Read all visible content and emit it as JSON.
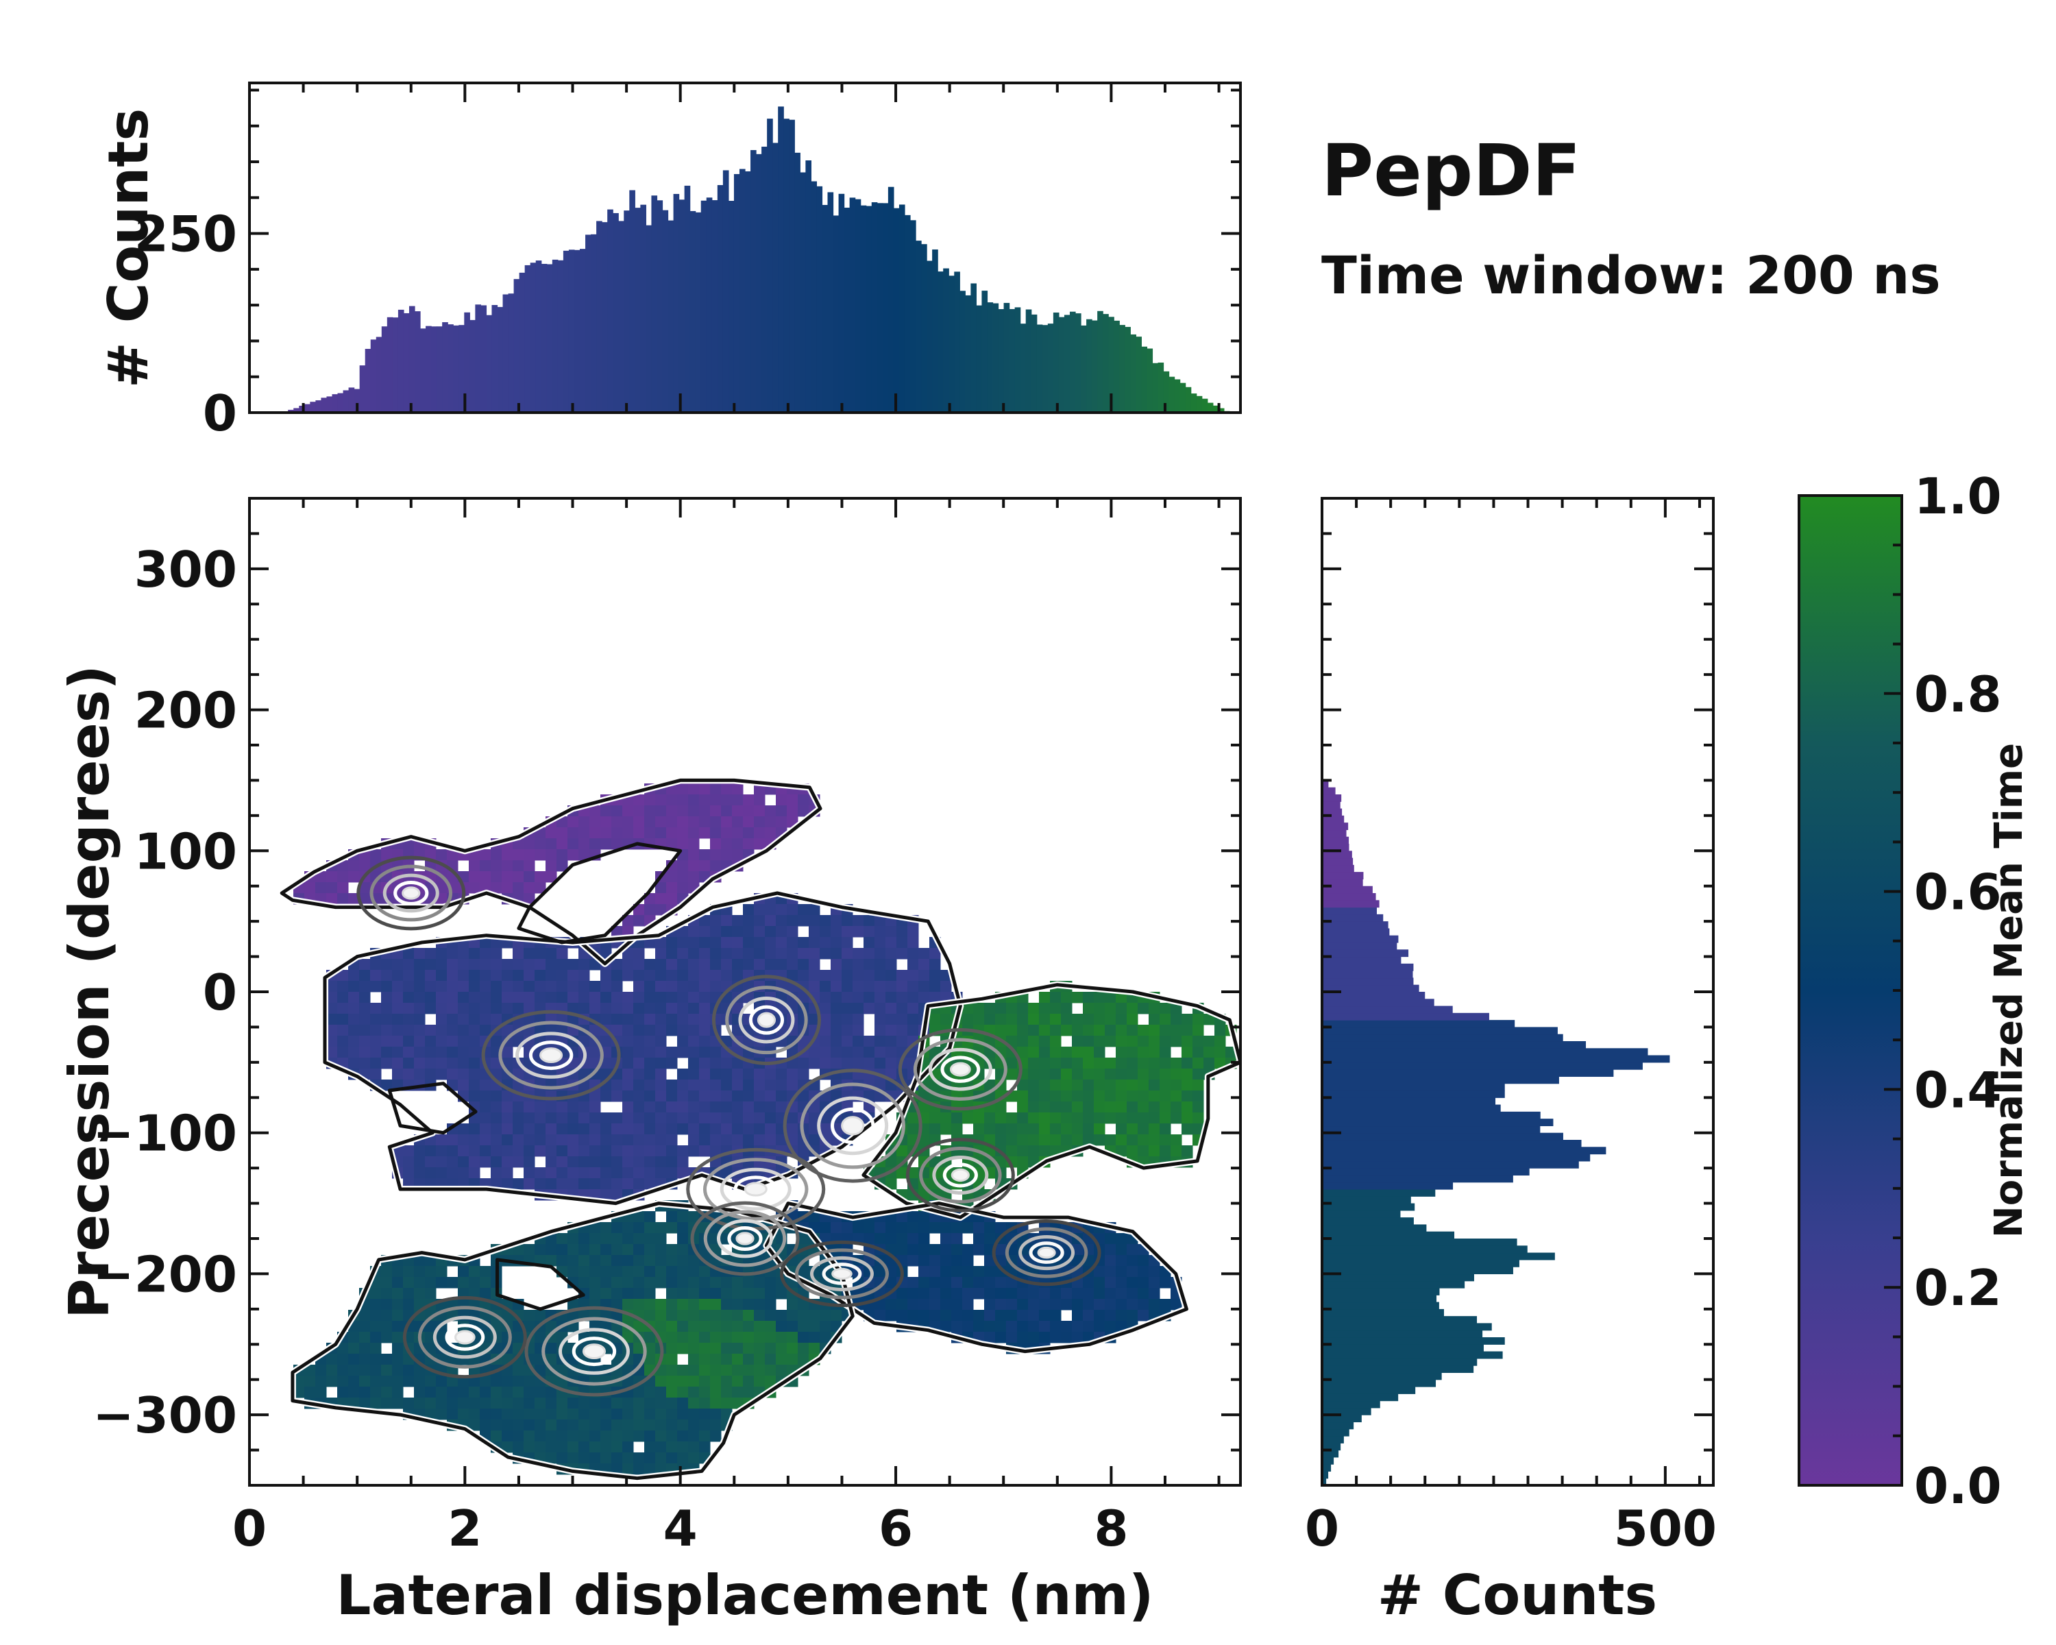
{
  "title": "PepDF",
  "subtitle": "Time window: 200 ns",
  "colors": {
    "purple": "#6a379c",
    "indigo": "#383f8f",
    "navy": "#063c6e",
    "teal": "#14595b",
    "green": "#228b22",
    "axis": "#111111"
  },
  "chart_data": [
    {
      "type": "heatmap",
      "name": "main-2d-distribution",
      "xlabel": "Lateral displacement (nm)",
      "ylabel": "Precession (degrees)",
      "xlim": [
        0,
        9.2
      ],
      "ylim": [
        -350,
        350
      ],
      "xticks": [
        0,
        2,
        4,
        6,
        8
      ],
      "xtick_labels": [
        "0",
        "2",
        "4",
        "6",
        "8"
      ],
      "yticks": [
        300,
        200,
        100,
        0,
        -100,
        -200,
        -300
      ],
      "ytick_labels": [
        "300",
        "200",
        "100",
        "0",
        "−100",
        "−200",
        "−300"
      ],
      "color_by": "Normalized Mean Time",
      "regions": [
        {
          "name": "upper-purple-lobe",
          "time": 0.05,
          "points": [
            [
              0.3,
              70
            ],
            [
              0.6,
              85
            ],
            [
              1.0,
              100
            ],
            [
              1.5,
              110
            ],
            [
              2.0,
              100
            ],
            [
              2.5,
              110
            ],
            [
              3.0,
              130
            ],
            [
              3.5,
              140
            ],
            [
              4.0,
              150
            ],
            [
              4.5,
              150
            ],
            [
              5.2,
              145
            ],
            [
              5.3,
              130
            ],
            [
              4.8,
              100
            ],
            [
              4.3,
              80
            ],
            [
              4.0,
              60
            ],
            [
              3.6,
              40
            ],
            [
              3.3,
              20
            ],
            [
              3.0,
              40
            ],
            [
              2.6,
              60
            ],
            [
              2.2,
              70
            ],
            [
              1.8,
              60
            ],
            [
              1.3,
              60
            ],
            [
              0.8,
              60
            ],
            [
              0.4,
              65
            ]
          ]
        },
        {
          "name": "central-indigo-lobe",
          "time": 0.3,
          "points": [
            [
              0.7,
              10
            ],
            [
              1.0,
              25
            ],
            [
              1.6,
              35
            ],
            [
              2.2,
              40
            ],
            [
              3.0,
              35
            ],
            [
              3.8,
              40
            ],
            [
              4.3,
              60
            ],
            [
              4.9,
              70
            ],
            [
              5.5,
              60
            ],
            [
              6.3,
              50
            ],
            [
              6.5,
              20
            ],
            [
              6.6,
              -10
            ],
            [
              6.5,
              -40
            ],
            [
              6.0,
              -80
            ],
            [
              5.5,
              -110
            ],
            [
              5.0,
              -130
            ],
            [
              4.6,
              -140
            ],
            [
              4.2,
              -130
            ],
            [
              3.8,
              -140
            ],
            [
              3.4,
              -150
            ],
            [
              2.8,
              -145
            ],
            [
              2.2,
              -140
            ],
            [
              1.4,
              -140
            ],
            [
              1.3,
              -110
            ],
            [
              1.7,
              -100
            ],
            [
              1.4,
              -80
            ],
            [
              1.0,
              -60
            ],
            [
              0.7,
              -50
            ],
            [
              0.7,
              -20
            ]
          ]
        },
        {
          "name": "right-green-lobe",
          "time": 0.9,
          "points": [
            [
              6.3,
              -10
            ],
            [
              6.8,
              -5
            ],
            [
              7.5,
              5
            ],
            [
              8.2,
              0
            ],
            [
              8.8,
              -10
            ],
            [
              9.1,
              -20
            ],
            [
              9.2,
              -50
            ],
            [
              8.9,
              -60
            ],
            [
              8.9,
              -90
            ],
            [
              8.8,
              -120
            ],
            [
              8.3,
              -125
            ],
            [
              7.8,
              -110
            ],
            [
              7.4,
              -120
            ],
            [
              7.0,
              -140
            ],
            [
              6.6,
              -160
            ],
            [
              6.1,
              -150
            ],
            [
              5.7,
              -130
            ],
            [
              6.0,
              -100
            ],
            [
              6.2,
              -60
            ]
          ]
        },
        {
          "name": "right-navy-lobe",
          "time": 0.48,
          "points": [
            [
              5.0,
              -150
            ],
            [
              5.6,
              -160
            ],
            [
              6.4,
              -150
            ],
            [
              7.0,
              -160
            ],
            [
              7.6,
              -160
            ],
            [
              8.2,
              -170
            ],
            [
              8.6,
              -200
            ],
            [
              8.7,
              -225
            ],
            [
              8.2,
              -240
            ],
            [
              7.8,
              -250
            ],
            [
              7.2,
              -255
            ],
            [
              6.8,
              -250
            ],
            [
              6.3,
              -240
            ],
            [
              5.8,
              -235
            ],
            [
              5.4,
              -215
            ],
            [
              5.0,
              -200
            ],
            [
              4.8,
              -180
            ]
          ]
        },
        {
          "name": "lower-teal-lobe",
          "time": 0.65,
          "points": [
            [
              1.2,
              -190
            ],
            [
              1.6,
              -185
            ],
            [
              2.0,
              -190
            ],
            [
              2.4,
              -180
            ],
            [
              2.8,
              -170
            ],
            [
              3.3,
              -160
            ],
            [
              3.8,
              -150
            ],
            [
              4.5,
              -155
            ],
            [
              5.2,
              -170
            ],
            [
              5.5,
              -200
            ],
            [
              5.6,
              -230
            ],
            [
              5.3,
              -260
            ],
            [
              4.9,
              -280
            ],
            [
              4.5,
              -300
            ],
            [
              4.4,
              -320
            ],
            [
              4.2,
              -340
            ],
            [
              3.6,
              -345
            ],
            [
              3.0,
              -340
            ],
            [
              2.4,
              -330
            ],
            [
              2.0,
              -310
            ],
            [
              1.4,
              -300
            ],
            [
              0.8,
              -295
            ],
            [
              0.4,
              -290
            ],
            [
              0.4,
              -270
            ],
            [
              0.8,
              -250
            ],
            [
              1.0,
              -225
            ]
          ]
        },
        {
          "name": "lower-green-patch",
          "time": 0.85,
          "points": [
            [
              3.5,
              -220
            ],
            [
              4.0,
              -215
            ],
            [
              4.5,
              -225
            ],
            [
              5.0,
              -240
            ],
            [
              5.3,
              -255
            ],
            [
              5.1,
              -275
            ],
            [
              4.7,
              -290
            ],
            [
              4.3,
              -300
            ],
            [
              4.0,
              -290
            ],
            [
              3.7,
              -270
            ],
            [
              3.5,
              -245
            ]
          ]
        }
      ],
      "holes": [
        {
          "points": [
            [
              2.6,
              60
            ],
            [
              3.0,
              90
            ],
            [
              3.6,
              105
            ],
            [
              4.0,
              100
            ],
            [
              3.7,
              70
            ],
            [
              3.3,
              40
            ],
            [
              2.9,
              35
            ],
            [
              2.5,
              45
            ]
          ]
        },
        {
          "points": [
            [
              1.3,
              -70
            ],
            [
              1.8,
              -65
            ],
            [
              2.1,
              -85
            ],
            [
              1.8,
              -100
            ],
            [
              1.4,
              -95
            ]
          ]
        },
        {
          "points": [
            [
              2.3,
              -190
            ],
            [
              2.8,
              -195
            ],
            [
              3.1,
              -215
            ],
            [
              2.7,
              -225
            ],
            [
              2.3,
              -215
            ]
          ]
        }
      ],
      "density_peaks": [
        {
          "x": 1.5,
          "y": 70,
          "w": 0.35,
          "h": 18,
          "level": 0.6
        },
        {
          "x": 2.8,
          "y": -45,
          "w": 0.45,
          "h": 22,
          "level": 0.8
        },
        {
          "x": 4.8,
          "y": -20,
          "w": 0.35,
          "h": 22,
          "level": 0.8
        },
        {
          "x": 5.6,
          "y": -95,
          "w": 0.45,
          "h": 28,
          "level": 0.9
        },
        {
          "x": 4.7,
          "y": -140,
          "w": 0.45,
          "h": 20,
          "level": 0.9
        },
        {
          "x": 4.6,
          "y": -175,
          "w": 0.35,
          "h": 18,
          "level": 0.95
        },
        {
          "x": 6.6,
          "y": -55,
          "w": 0.4,
          "h": 20,
          "level": 0.85
        },
        {
          "x": 3.2,
          "y": -255,
          "w": 0.45,
          "h": 22,
          "level": 0.9
        },
        {
          "x": 2.0,
          "y": -245,
          "w": 0.4,
          "h": 20,
          "level": 0.6
        },
        {
          "x": 6.6,
          "y": -130,
          "w": 0.35,
          "h": 18,
          "level": 0.6
        },
        {
          "x": 5.5,
          "y": -200,
          "w": 0.4,
          "h": 16,
          "level": 0.5
        },
        {
          "x": 7.4,
          "y": -185,
          "w": 0.35,
          "h": 16,
          "level": 0.5
        }
      ]
    },
    {
      "type": "bar",
      "name": "top-marginal-histogram",
      "ylabel": "# Counts",
      "yticks": [
        0,
        250
      ],
      "ytick_labels": [
        "0",
        "250"
      ],
      "ylim": [
        0,
        460
      ],
      "xlim": [
        0,
        9.2
      ],
      "profile_x": [
        0.3,
        0.5,
        0.8,
        1.0,
        1.1,
        1.3,
        1.4,
        1.6,
        1.7,
        1.8,
        2.0,
        2.3,
        2.5,
        2.8,
        3.0,
        3.2,
        3.4,
        3.6,
        3.8,
        4.0,
        4.2,
        4.4,
        4.6,
        4.8,
        4.9,
        5.0,
        5.2,
        5.4,
        5.6,
        5.8,
        6.0,
        6.1,
        6.3,
        6.5,
        6.6,
        6.8,
        7.0,
        7.3,
        7.6,
        7.9,
        8.2,
        8.5,
        8.7,
        8.9,
        9.1
      ],
      "profile_y": [
        0,
        10,
        25,
        35,
        90,
        135,
        150,
        130,
        115,
        120,
        135,
        150,
        190,
        215,
        235,
        250,
        275,
        290,
        280,
        300,
        295,
        310,
        340,
        380,
        410,
        385,
        350,
        300,
        290,
        295,
        295,
        260,
        230,
        200,
        175,
        160,
        145,
        130,
        135,
        130,
        110,
        60,
        35,
        15,
        0
      ]
    },
    {
      "type": "bar",
      "name": "right-marginal-histogram",
      "xlabel": "# Counts",
      "xticks": [
        0,
        500
      ],
      "xtick_labels": [
        "0",
        "500"
      ],
      "xlim": [
        0,
        570
      ],
      "ylim": [
        -350,
        350
      ],
      "profile_y": [
        150,
        140,
        120,
        100,
        90,
        80,
        70,
        50,
        30,
        10,
        0,
        -10,
        -20,
        -30,
        -40,
        -50,
        -60,
        -70,
        -80,
        -90,
        -100,
        -110,
        -120,
        -130,
        -140,
        -150,
        -160,
        -170,
        -180,
        -190,
        -200,
        -210,
        -220,
        -230,
        -240,
        -250,
        -260,
        -270,
        -280,
        -290,
        -300,
        -310,
        -320,
        -330,
        -340,
        -350
      ],
      "profile_v": [
        5,
        25,
        35,
        40,
        45,
        60,
        75,
        90,
        120,
        130,
        135,
        170,
        250,
        350,
        430,
        510,
        360,
        250,
        260,
        320,
        340,
        380,
        400,
        300,
        170,
        130,
        120,
        150,
        310,
        330,
        250,
        180,
        160,
        200,
        240,
        260,
        240,
        200,
        140,
        100,
        60,
        40,
        30,
        20,
        10,
        5
      ]
    },
    {
      "type": "colorbar",
      "name": "normalized-mean-time-colorbar",
      "label": "Normalized Mean Time",
      "ticks": [
        0.0,
        0.2,
        0.4,
        0.6,
        0.8,
        1.0
      ],
      "tick_labels": [
        "0.0",
        "0.2",
        "0.4",
        "0.6",
        "0.8",
        "1.0"
      ],
      "stops": [
        "#6a379c",
        "#383f8f",
        "#063c6e",
        "#14595b",
        "#228b22"
      ]
    }
  ]
}
